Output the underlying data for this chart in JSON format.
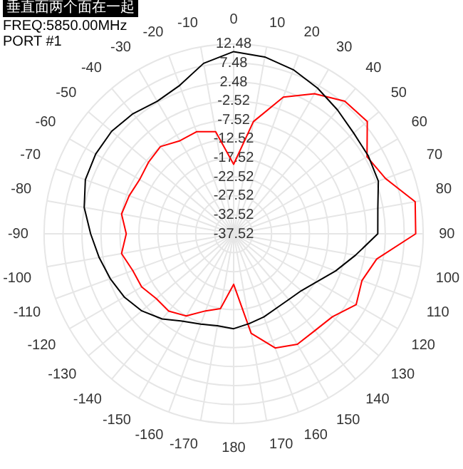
{
  "chart_data": {
    "type": "radar",
    "title": "垂直面两个面在一起",
    "annotations": [
      "FREQ:5850.00MHz",
      "PORT #1"
    ],
    "categories": [
      "0",
      "10",
      "20",
      "30",
      "40",
      "50",
      "60",
      "70",
      "80",
      "90",
      "100",
      "110",
      "120",
      "130",
      "140",
      "150",
      "160",
      "170",
      "180",
      "-170",
      "-160",
      "-150",
      "-140",
      "-130",
      "-120",
      "-110",
      "-100",
      "-90",
      "-80",
      "-70",
      "-60",
      "-50",
      "-40",
      "-30",
      "-20",
      "-10"
    ],
    "series": [
      {
        "color": "#000000",
        "values": [
          10.5,
          9.8,
          8.5,
          6.8,
          5.1,
          3.8,
          3.5,
          3.1,
          1.1,
          0.5,
          -4.9,
          -8.9,
          -12.2,
          -14.2,
          -14.9,
          -14.9,
          -14.2,
          -13.5,
          -12.5,
          -12.9,
          -12.2,
          -10.9,
          -8.2,
          -5.9,
          -4.2,
          -2.9,
          -1.5,
          0.2,
          2.5,
          4.1,
          4.5,
          4.5,
          3.8,
          2.8,
          4.1,
          8.1
        ]
      },
      {
        "color": "#ff0000",
        "values": [
          -19.2,
          -7.5,
          0.8,
          5.1,
          8.1,
          8.5,
          3.1,
          5.1,
          11.1,
          10.5,
          0.8,
          -1.5,
          -0.2,
          -3.5,
          -4.2,
          -3.9,
          -5.5,
          -10.9,
          -24.2,
          -17.5,
          -15.9,
          -12.5,
          -10.9,
          -10.9,
          -9.5,
          -9.2,
          -7.5,
          -9.2,
          -7.5,
          -8.2,
          -8.9,
          -8.2,
          -7.5,
          -9.2,
          -8.9,
          -10.2
        ]
      }
    ],
    "ylim": [
      -37.52,
      12.48
    ],
    "yticks": [
      12.48,
      7.48,
      2.48,
      -2.52,
      -7.52,
      -12.52,
      -17.52,
      -22.52,
      -27.52,
      -32.52,
      -37.52
    ],
    "grid": true,
    "marker": "none",
    "line_style": "solid"
  }
}
